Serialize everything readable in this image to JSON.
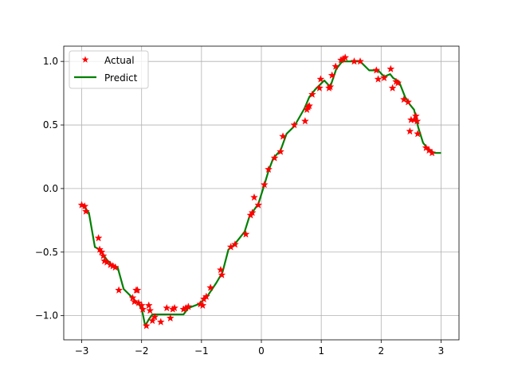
{
  "chart_data": {
    "type": "scatter",
    "grid": true,
    "legend_position": "top-left",
    "xlim": [
      -3.3,
      3.3
    ],
    "ylim": [
      -1.19,
      1.12
    ],
    "xticks": [
      -3,
      -2,
      -1,
      0,
      1,
      2,
      3
    ],
    "yticks": [
      -1.0,
      -0.5,
      0.0,
      0.5,
      1.0
    ],
    "xtick_labels": [
      "−3",
      "−2",
      "−1",
      "0",
      "1",
      "2",
      "3"
    ],
    "ytick_labels": [
      "−1.0",
      "−0.5",
      "0.0",
      "0.5",
      "1.0"
    ],
    "colors": {
      "actual": "#ff0000",
      "predict": "#008000"
    },
    "series": [
      {
        "name": "Actual",
        "kind": "scatter",
        "marker": "star",
        "points": [
          [
            -3.0,
            -0.13
          ],
          [
            -2.95,
            -0.14
          ],
          [
            -2.93,
            -0.18
          ],
          [
            -2.72,
            -0.39
          ],
          [
            -2.7,
            -0.48
          ],
          [
            -2.67,
            -0.5
          ],
          [
            -2.64,
            -0.53
          ],
          [
            -2.62,
            -0.57
          ],
          [
            -2.58,
            -0.58
          ],
          [
            -2.52,
            -0.6
          ],
          [
            -2.48,
            -0.61
          ],
          [
            -2.44,
            -0.62
          ],
          [
            -2.38,
            -0.8
          ],
          [
            -2.15,
            -0.86
          ],
          [
            -2.12,
            -0.89
          ],
          [
            -2.09,
            -0.8
          ],
          [
            -2.07,
            -0.8
          ],
          [
            -2.05,
            -0.9
          ],
          [
            -2.0,
            -0.92
          ],
          [
            -1.98,
            -0.95
          ],
          [
            -1.92,
            -1.08
          ],
          [
            -1.88,
            -0.92
          ],
          [
            -1.86,
            -0.96
          ],
          [
            -1.82,
            -1.04
          ],
          [
            -1.78,
            -1.01
          ],
          [
            -1.68,
            -1.05
          ],
          [
            -1.58,
            -0.94
          ],
          [
            -1.52,
            -1.02
          ],
          [
            -1.48,
            -0.95
          ],
          [
            -1.45,
            -0.94
          ],
          [
            -1.3,
            -0.95
          ],
          [
            -1.26,
            -0.94
          ],
          [
            -1.22,
            -0.93
          ],
          [
            -1.02,
            -0.91
          ],
          [
            -0.98,
            -0.92
          ],
          [
            -0.96,
            -0.87
          ],
          [
            -0.92,
            -0.85
          ],
          [
            -0.85,
            -0.78
          ],
          [
            -0.68,
            -0.64
          ],
          [
            -0.66,
            -0.68
          ],
          [
            -0.51,
            -0.46
          ],
          [
            -0.44,
            -0.44
          ],
          [
            -0.26,
            -0.36
          ],
          [
            -0.18,
            -0.21
          ],
          [
            -0.15,
            -0.19
          ],
          [
            -0.12,
            -0.07
          ],
          [
            -0.05,
            -0.13
          ],
          [
            0.05,
            0.03
          ],
          [
            0.12,
            0.15
          ],
          [
            0.22,
            0.24
          ],
          [
            0.32,
            0.29
          ],
          [
            0.36,
            0.41
          ],
          [
            0.55,
            0.5
          ],
          [
            0.73,
            0.53
          ],
          [
            0.76,
            0.62
          ],
          [
            0.78,
            0.64
          ],
          [
            0.8,
            0.65
          ],
          [
            0.85,
            0.74
          ],
          [
            0.97,
            0.79
          ],
          [
            0.99,
            0.86
          ],
          [
            1.13,
            0.79
          ],
          [
            1.15,
            0.8
          ],
          [
            1.18,
            0.89
          ],
          [
            1.24,
            0.96
          ],
          [
            1.33,
            1.01
          ],
          [
            1.37,
            1.02
          ],
          [
            1.4,
            1.03
          ],
          [
            1.55,
            1.0
          ],
          [
            1.65,
            1.0
          ],
          [
            1.92,
            0.93
          ],
          [
            1.95,
            0.86
          ],
          [
            2.05,
            0.87
          ],
          [
            2.16,
            0.94
          ],
          [
            2.19,
            0.79
          ],
          [
            2.25,
            0.84
          ],
          [
            2.28,
            0.83
          ],
          [
            2.38,
            0.7
          ],
          [
            2.45,
            0.68
          ],
          [
            2.48,
            0.45
          ],
          [
            2.5,
            0.54
          ],
          [
            2.55,
            0.54
          ],
          [
            2.58,
            0.57
          ],
          [
            2.6,
            0.53
          ],
          [
            2.61,
            0.43
          ],
          [
            2.75,
            0.32
          ],
          [
            2.8,
            0.3
          ],
          [
            2.85,
            0.28
          ]
        ]
      },
      {
        "name": "Predict",
        "kind": "line",
        "points": [
          [
            -3.0,
            -0.13
          ],
          [
            -2.93,
            -0.16
          ],
          [
            -2.88,
            -0.19
          ],
          [
            -2.78,
            -0.46
          ],
          [
            -2.7,
            -0.48
          ],
          [
            -2.58,
            -0.56
          ],
          [
            -2.5,
            -0.6
          ],
          [
            -2.4,
            -0.62
          ],
          [
            -2.3,
            -0.79
          ],
          [
            -2.15,
            -0.86
          ],
          [
            -2.05,
            -0.91
          ],
          [
            -2.0,
            -0.94
          ],
          [
            -1.94,
            -1.08
          ],
          [
            -1.88,
            -1.03
          ],
          [
            -1.82,
            -0.99
          ],
          [
            -1.3,
            -0.99
          ],
          [
            -1.22,
            -0.94
          ],
          [
            -1.05,
            -0.91
          ],
          [
            -0.92,
            -0.86
          ],
          [
            -0.75,
            -0.74
          ],
          [
            -0.65,
            -0.66
          ],
          [
            -0.55,
            -0.48
          ],
          [
            -0.45,
            -0.44
          ],
          [
            -0.28,
            -0.34
          ],
          [
            -0.2,
            -0.22
          ],
          [
            -0.05,
            -0.12
          ],
          [
            0.05,
            0.03
          ],
          [
            0.12,
            0.14
          ],
          [
            0.2,
            0.24
          ],
          [
            0.32,
            0.3
          ],
          [
            0.42,
            0.43
          ],
          [
            0.55,
            0.49
          ],
          [
            0.72,
            0.63
          ],
          [
            0.8,
            0.72
          ],
          [
            0.9,
            0.78
          ],
          [
            1.05,
            0.85
          ],
          [
            1.15,
            0.8
          ],
          [
            1.25,
            0.94
          ],
          [
            1.35,
            1.0
          ],
          [
            1.65,
            1.0
          ],
          [
            1.8,
            0.93
          ],
          [
            1.95,
            0.93
          ],
          [
            2.05,
            0.88
          ],
          [
            2.15,
            0.9
          ],
          [
            2.2,
            0.87
          ],
          [
            2.3,
            0.84
          ],
          [
            2.4,
            0.72
          ],
          [
            2.48,
            0.66
          ],
          [
            2.55,
            0.62
          ],
          [
            2.62,
            0.48
          ],
          [
            2.7,
            0.36
          ],
          [
            2.8,
            0.3
          ],
          [
            2.9,
            0.28
          ],
          [
            3.0,
            0.28
          ]
        ]
      }
    ]
  }
}
